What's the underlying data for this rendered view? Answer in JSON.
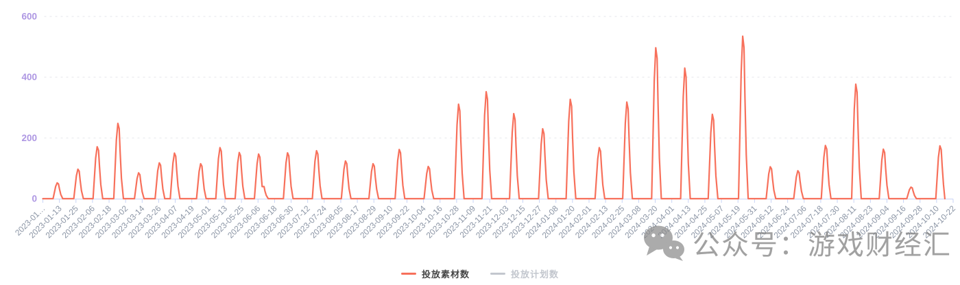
{
  "chart_data": {
    "type": "line",
    "title": "",
    "x_axis": {
      "start_date": "2023-01-01",
      "tick_interval_days": 12,
      "tick_labels": [
        "2023-01…",
        "2023-01-13",
        "2023-01-25",
        "2023-02-06",
        "2023-02-18",
        "2023-03-02",
        "2023-03-14",
        "2023-03-26",
        "2023-04-07",
        "2023-04-19",
        "2023-05-01",
        "2023-05-13",
        "2023-05-25",
        "2023-06-06",
        "2023-06-18",
        "2023-06-30",
        "2023-07-12",
        "2023-07-24",
        "2023-08-05",
        "2023-08-17",
        "2023-08-29",
        "2023-09-10",
        "2023-09-22",
        "2023-10-04",
        "2023-10-16",
        "2023-10-28",
        "2023-11-09",
        "2023-11-21",
        "2023-12-03",
        "2023-12-15",
        "2023-12-27",
        "2024-01-08",
        "2024-01-20",
        "2024-02-01",
        "2024-02-13",
        "2024-02-25",
        "2024-03-08",
        "2024-03-20",
        "2024-04-01",
        "2024-04-13",
        "2024-04-25",
        "2024-05-07",
        "2024-05-19",
        "2024-05-31",
        "2024-06-12",
        "2024-06-24",
        "2024-07-06",
        "2024-07-18",
        "2024-07-30",
        "2024-08-11",
        "2024-08-23",
        "2024-09-04",
        "2024-09-16",
        "2024-09-28",
        "2024-10-10",
        "2024-10-22"
      ]
    },
    "y_axis": {
      "min": 0,
      "max": 600,
      "ticks": [
        0,
        200,
        400,
        600
      ]
    },
    "grid": {
      "horizontal_dashed": true
    },
    "legend": {
      "position": "bottom-center",
      "items": [
        {
          "label": "投放素材数",
          "color": "#f7705b",
          "active": true
        },
        {
          "label": "投放计划数",
          "color": "#c3c7ce",
          "active": false
        }
      ]
    },
    "series": [
      {
        "name": "投放素材数",
        "color": "#f7705b",
        "baseline_value": 0,
        "line_end_offset_days": 654,
        "spikes": [
          {
            "date": "2023-01-12",
            "value": 52
          },
          {
            "date": "2023-01-27",
            "value": 97
          },
          {
            "date": "2023-02-10",
            "value": 171
          },
          {
            "date": "2023-02-25",
            "value": 248
          },
          {
            "date": "2023-03-12",
            "value": 85
          },
          {
            "date": "2023-03-27",
            "value": 118
          },
          {
            "date": "2023-04-07",
            "value": 150
          },
          {
            "date": "2023-04-26",
            "value": 115
          },
          {
            "date": "2023-05-10",
            "value": 168
          },
          {
            "date": "2023-05-24",
            "value": 152
          },
          {
            "date": "2023-06-07",
            "value": 147
          },
          {
            "date": "2023-06-10",
            "value": 40
          },
          {
            "date": "2023-06-28",
            "value": 151
          },
          {
            "date": "2023-07-19",
            "value": 158
          },
          {
            "date": "2023-08-09",
            "value": 124
          },
          {
            "date": "2023-08-29",
            "value": 115
          },
          {
            "date": "2023-09-17",
            "value": 162
          },
          {
            "date": "2023-10-08",
            "value": 106
          },
          {
            "date": "2023-10-30",
            "value": 311
          },
          {
            "date": "2023-11-19",
            "value": 352
          },
          {
            "date": "2023-12-09",
            "value": 280
          },
          {
            "date": "2023-12-30",
            "value": 230
          },
          {
            "date": "2024-01-19",
            "value": 327
          },
          {
            "date": "2024-02-09",
            "value": 168
          },
          {
            "date": "2024-02-29",
            "value": 318
          },
          {
            "date": "2024-03-21",
            "value": 497
          },
          {
            "date": "2024-04-11",
            "value": 430
          },
          {
            "date": "2024-05-01",
            "value": 278
          },
          {
            "date": "2024-05-23",
            "value": 535
          },
          {
            "date": "2024-06-12",
            "value": 105
          },
          {
            "date": "2024-07-02",
            "value": 92
          },
          {
            "date": "2024-07-22",
            "value": 175
          },
          {
            "date": "2024-08-13",
            "value": 377
          },
          {
            "date": "2024-09-02",
            "value": 163
          },
          {
            "date": "2024-09-22",
            "value": 38
          },
          {
            "date": "2024-10-13",
            "value": 174
          }
        ]
      },
      {
        "name": "投放计划数",
        "color": "#c3c7ce",
        "hidden": true,
        "spikes": []
      }
    ]
  },
  "watermark": {
    "icon": "wechat-logo",
    "text": "公众号：游戏财经汇"
  },
  "colors": {
    "series_line": "#f7705b",
    "y_axis_label": "#ae97e3",
    "x_axis_label": "#8b95a5",
    "axis_tick": "#c8d3f5",
    "gridline": "#e5e6eb",
    "legend_active_text": "#464646",
    "legend_inactive": "#c3c7ce",
    "watermark": "#7e7e7e",
    "background": "#ffffff"
  }
}
